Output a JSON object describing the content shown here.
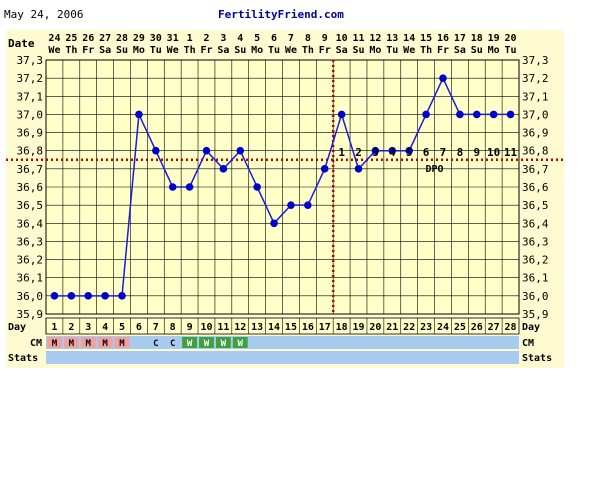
{
  "header": {
    "date": "May 24, 2006",
    "site": "FertilityFriend.com"
  },
  "row_labels": {
    "date": "Date",
    "day": "Day",
    "cm": "CM",
    "stats": "Stats"
  },
  "colors": {
    "panel_background": "#fffbd0",
    "plot_background": "#ffffc8",
    "grid": "#000000",
    "line": "#1b1be0",
    "marker": "#0000cc",
    "coverline": "#c00000",
    "header_text": "#000000",
    "site_text": "#0000a0",
    "day_row": "#ffffc8",
    "cm_row": "#a8ccf0",
    "stats_row": "#a8ccf0",
    "cm_menstrual": "#f0a0a0",
    "cm_watery": "#40a040",
    "cm_default": "#a8ccf0"
  },
  "chart_data": {
    "type": "line",
    "x": [
      1,
      2,
      3,
      4,
      5,
      6,
      7,
      8,
      9,
      10,
      11,
      12,
      13,
      14,
      15,
      16,
      17,
      18,
      19,
      20,
      21,
      22,
      23,
      24,
      25,
      26,
      27,
      28
    ],
    "date_numbers": [
      "24",
      "25",
      "26",
      "27",
      "28",
      "29",
      "30",
      "31",
      "1",
      "2",
      "3",
      "4",
      "5",
      "6",
      "7",
      "8",
      "9",
      "10",
      "11",
      "12",
      "13",
      "14",
      "15",
      "16",
      "17",
      "18",
      "19",
      "20"
    ],
    "weekdays": [
      "We",
      "Th",
      "Fr",
      "Sa",
      "Su",
      "Mo",
      "Tu",
      "We",
      "Th",
      "Fr",
      "Sa",
      "Su",
      "Mo",
      "Tu",
      "We",
      "Th",
      "Fr",
      "Sa",
      "Su",
      "Mo",
      "Tu",
      "We",
      "Th",
      "Fr",
      "Sa",
      "Su",
      "Mo",
      "Tu"
    ],
    "series": [
      {
        "values": [
          36.0,
          36.0,
          36.0,
          36.0,
          36.0,
          37.0,
          36.8,
          36.6,
          36.6,
          36.8,
          36.7,
          36.8,
          36.6,
          36.4,
          36.5,
          36.5,
          36.7,
          37.0,
          36.7,
          36.8,
          36.8,
          36.8,
          37.0,
          37.2,
          37.0,
          37.0,
          37.0,
          37.0
        ]
      }
    ],
    "ylim": [
      35.9,
      37.3
    ],
    "y_ticks": [
      "35,9",
      "36,0",
      "36,1",
      "36,2",
      "36,3",
      "36,4",
      "36,5",
      "36,6",
      "36,7",
      "36,8",
      "36,9",
      "37,0",
      "37,1",
      "37,2",
      "37,3"
    ],
    "coverline": 36.75,
    "ovulation_day": 17,
    "dpo": {
      "label": "DPO",
      "start_day": 18,
      "numbers": [
        "1",
        "2",
        "3",
        "4",
        "5",
        "6",
        "7",
        "8",
        "9",
        "10",
        "11"
      ]
    },
    "cm": [
      "M",
      "M",
      "M",
      "M",
      "M",
      "",
      "C",
      "C",
      "W",
      "W",
      "W",
      "W",
      "",
      "",
      "",
      "",
      "",
      "",
      "",
      "",
      "",
      "",
      "",
      "",
      "",
      "",
      "",
      ""
    ],
    "grid": true
  }
}
